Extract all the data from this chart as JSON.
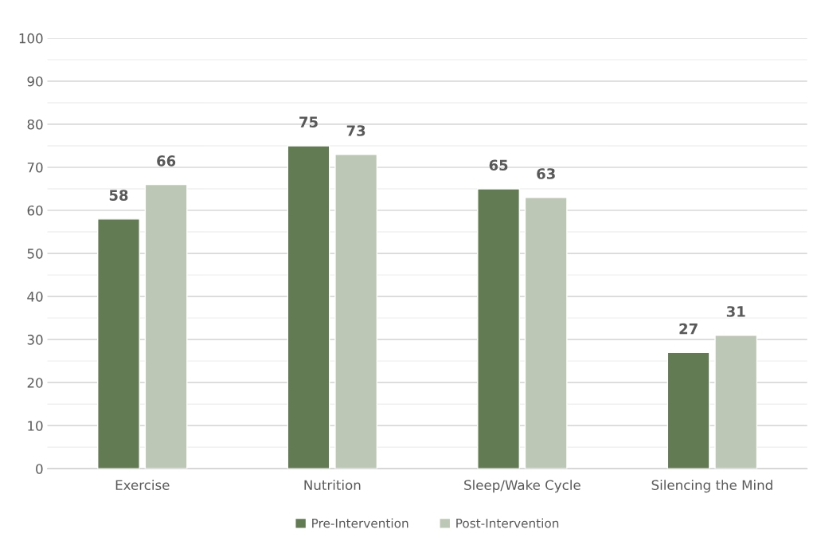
{
  "chart_data": {
    "type": "bar",
    "categories": [
      "Exercise",
      "Nutrition",
      "Sleep/Wake Cycle",
      "Silencing the Mind"
    ],
    "series": [
      {
        "name": "Pre-Intervention",
        "color": "#627b52",
        "values": [
          58,
          75,
          65,
          27
        ]
      },
      {
        "name": "Post-Intervention",
        "color": "#bcc8b5",
        "values": [
          66,
          73,
          63,
          31
        ]
      }
    ],
    "ylim": [
      0,
      100
    ],
    "yticks": [
      0,
      10,
      20,
      30,
      40,
      50,
      60,
      70,
      80,
      90,
      100
    ],
    "grid": "y",
    "legend": "bottom",
    "data_labels": true
  }
}
